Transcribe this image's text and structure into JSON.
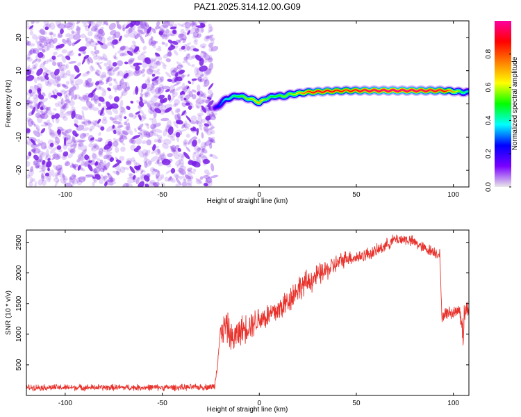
{
  "title": "PAZ1.2025.314.12.00.G09",
  "chart_data": [
    {
      "type": "heatmap",
      "name": "spectrogram",
      "xlabel": "Height of straight line (km)",
      "ylabel": "Frequency (Hz)",
      "xlim": [
        -120,
        108
      ],
      "ylim": [
        -25,
        25
      ],
      "xticks": [
        -100,
        -50,
        0,
        50,
        100
      ],
      "yticks": [
        20,
        10,
        0,
        -10,
        -20
      ],
      "noise_region": {
        "x": [
          -120,
          -23
        ],
        "y": [
          -25,
          25
        ],
        "color": "#7a1fe6"
      },
      "ridge": {
        "x": [
          -23,
          -20,
          -17,
          -14,
          -11,
          -8,
          -5,
          -2,
          0,
          3,
          6,
          9,
          12,
          15,
          18,
          21,
          24,
          28,
          35,
          45,
          55,
          70,
          85,
          95,
          100,
          104,
          108
        ],
        "y": [
          -1.5,
          0,
          1.5,
          2,
          2.5,
          2,
          1.5,
          1,
          0.3,
          1.5,
          2,
          2.5,
          2.2,
          2.8,
          3,
          3.2,
          3.5,
          3.6,
          3.8,
          4,
          4,
          4,
          4,
          4,
          3.8,
          3.6,
          3.5
        ],
        "amplitude": [
          0.2,
          0.3,
          0.4,
          0.45,
          0.5,
          0.55,
          0.6,
          0.65,
          0.7,
          0.55,
          0.5,
          0.5,
          0.55,
          0.55,
          0.6,
          0.7,
          0.8,
          0.9,
          0.9,
          0.85,
          0.95,
          1.0,
          0.95,
          0.9,
          0.7,
          0.5,
          0.4
        ]
      },
      "colorbar": {
        "label": "Normalized spectral amplitude",
        "ticks": [
          "0.0",
          "0.2",
          "0.4",
          "0.6",
          "0.8"
        ],
        "tick_values": [
          0,
          0.2,
          0.4,
          0.6,
          0.8
        ],
        "range": [
          0,
          1
        ],
        "stops": [
          "#e8e8e8",
          "#7a00ff",
          "#0000ff",
          "#00ffff",
          "#00ff00",
          "#ffff00",
          "#ff8000",
          "#ff0000",
          "#ff00a0"
        ]
      }
    },
    {
      "type": "line",
      "name": "snr",
      "xlabel": "Height of straight line (km)",
      "ylabel": "SNR (10 * v/v)",
      "xlim": [
        -120,
        108
      ],
      "ylim": [
        0,
        2700
      ],
      "xticks": [
        -100,
        -50,
        0,
        50,
        100
      ],
      "yticks": [
        500,
        1000,
        1500,
        2000,
        2500
      ],
      "color": "#e8322c",
      "series": [
        {
          "name": "SNR",
          "x": [
            -120,
            -100,
            -80,
            -60,
            -40,
            -25,
            -23,
            -20,
            -17,
            -14,
            -10,
            -5,
            0,
            5,
            10,
            15,
            20,
            25,
            30,
            35,
            40,
            45,
            50,
            55,
            60,
            65,
            70,
            75,
            80,
            85,
            90,
            93,
            94,
            97,
            100,
            103,
            104,
            105,
            106,
            108
          ],
          "y": [
            130,
            130,
            130,
            130,
            130,
            140,
            150,
            1000,
            1150,
            900,
            1050,
            1150,
            1250,
            1300,
            1400,
            1550,
            1750,
            1850,
            1950,
            2050,
            2150,
            2250,
            2250,
            2300,
            2350,
            2450,
            2550,
            2550,
            2500,
            2400,
            2350,
            2300,
            1300,
            1350,
            1350,
            1400,
            1300,
            1000,
            1400,
            1400
          ],
          "noise_amplitude": [
            60,
            60,
            60,
            60,
            60,
            60,
            60,
            250,
            300,
            300,
            280,
            280,
            260,
            260,
            260,
            260,
            250,
            240,
            220,
            200,
            180,
            150,
            130,
            130,
            120,
            120,
            110,
            110,
            110,
            110,
            110,
            110,
            120,
            120,
            120,
            120,
            250,
            350,
            250,
            120
          ]
        }
      ]
    }
  ]
}
